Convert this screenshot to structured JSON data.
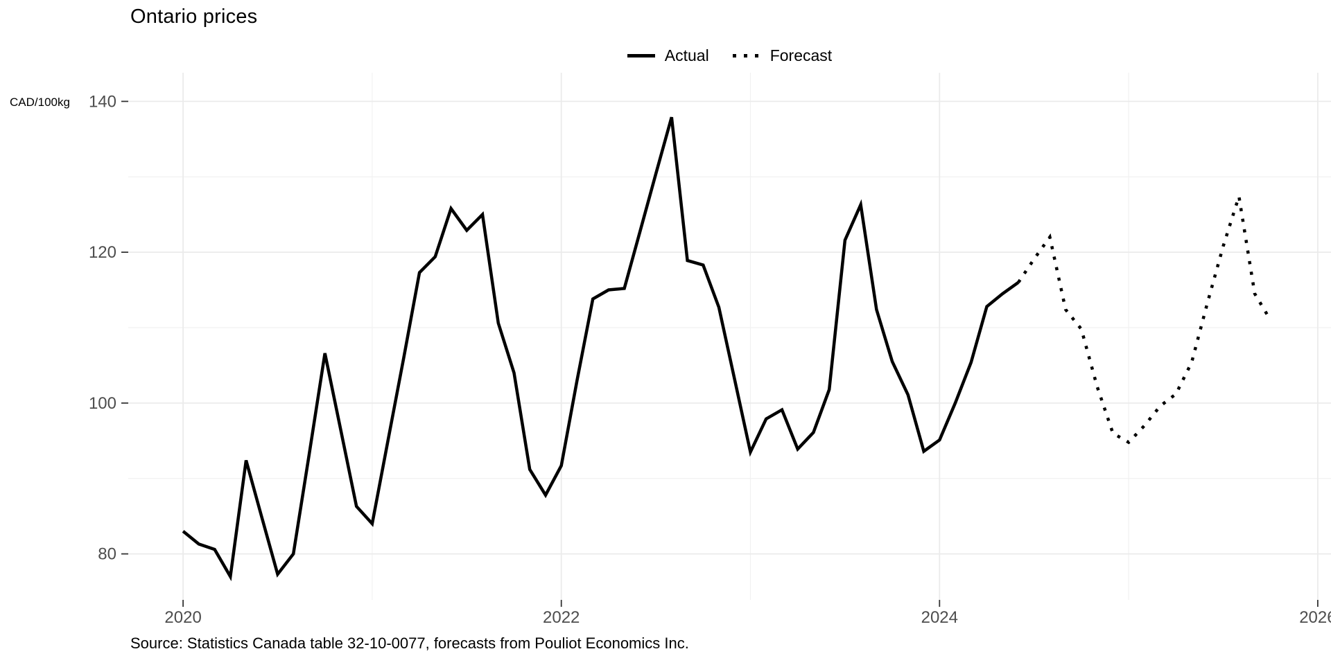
{
  "title": "Ontario prices",
  "y_unit_label": "CAD/100kg",
  "caption": "Source: Statistics Canada table 32-10-0077, forecasts from Pouliot Economics Inc.",
  "legend": {
    "actual_label": "Actual",
    "forecast_label": "Forecast"
  },
  "colors": {
    "line": "#000000",
    "grid_major": "#ebebeb",
    "grid_minor": "#f1f1f1",
    "axis_text": "#4d4d4d",
    "tick_mark": "#333333",
    "background": "#ffffff"
  },
  "chart_data": {
    "type": "line",
    "title": "Ontario prices",
    "ylabel": "CAD/100kg",
    "xlabel": "",
    "grid": true,
    "legend_position": "top-center",
    "x_ticks": [
      2020,
      2022,
      2024,
      2026
    ],
    "x_minor_ticks": [
      2021,
      2023,
      2025
    ],
    "y_ticks": [
      80,
      100,
      120,
      140
    ],
    "y_minor_ticks": [
      90,
      110,
      130
    ],
    "x_range": [
      2019.71,
      2026.07
    ],
    "y_range": [
      73.9,
      143.8
    ],
    "series": [
      {
        "name": "Actual",
        "line_style": "solid",
        "points": [
          [
            "2020-01",
            83.0
          ],
          [
            "2020-02",
            81.3
          ],
          [
            "2020-03",
            80.6
          ],
          [
            "2020-04",
            77.0
          ],
          [
            "2020-05",
            92.4
          ],
          [
            "2020-06",
            84.8
          ],
          [
            "2020-07",
            77.3
          ],
          [
            "2020-08",
            80.0
          ],
          [
            "2020-09",
            93.2
          ],
          [
            "2020-10",
            106.6
          ],
          [
            "2020-11",
            96.5
          ],
          [
            "2020-12",
            86.3
          ],
          [
            "2021-01",
            84.0
          ],
          [
            "2021-02",
            95.0
          ],
          [
            "2021-03",
            106.0
          ],
          [
            "2021-04",
            117.3
          ],
          [
            "2021-05",
            119.4
          ],
          [
            "2021-06",
            125.8
          ],
          [
            "2021-07",
            122.9
          ],
          [
            "2021-08",
            125.0
          ],
          [
            "2021-09",
            110.6
          ],
          [
            "2021-10",
            104.0
          ],
          [
            "2021-11",
            91.2
          ],
          [
            "2021-12",
            87.8
          ],
          [
            "2022-01",
            91.7
          ],
          [
            "2022-02",
            103.0
          ],
          [
            "2022-03",
            113.8
          ],
          [
            "2022-04",
            115.0
          ],
          [
            "2022-05",
            115.2
          ],
          [
            "2022-06",
            122.8
          ],
          [
            "2022-07",
            130.4
          ],
          [
            "2022-08",
            137.9
          ],
          [
            "2022-09",
            118.9
          ],
          [
            "2022-10",
            118.3
          ],
          [
            "2022-11",
            112.7
          ],
          [
            "2022-12",
            103.1
          ],
          [
            "2023-01",
            93.5
          ],
          [
            "2023-02",
            97.9
          ],
          [
            "2023-03",
            99.1
          ],
          [
            "2023-04",
            93.9
          ],
          [
            "2023-05",
            96.1
          ],
          [
            "2023-06",
            101.8
          ],
          [
            "2023-07",
            121.6
          ],
          [
            "2023-08",
            126.3
          ],
          [
            "2023-09",
            112.4
          ],
          [
            "2023-10",
            105.5
          ],
          [
            "2023-11",
            101.1
          ],
          [
            "2023-12",
            93.6
          ],
          [
            "2024-01",
            95.1
          ],
          [
            "2024-02",
            100.0
          ],
          [
            "2024-03",
            105.4
          ],
          [
            "2024-04",
            112.8
          ],
          [
            "2024-05",
            114.5
          ],
          [
            "2024-06",
            116.0
          ]
        ]
      },
      {
        "name": "Forecast",
        "line_style": "dotted",
        "points": [
          [
            "2024-06",
            116.0
          ],
          [
            "2024-07",
            119.1
          ],
          [
            "2024-08",
            122.0
          ],
          [
            "2024-09",
            112.4
          ],
          [
            "2024-10",
            109.8
          ],
          [
            "2024-11",
            102.2
          ],
          [
            "2024-12",
            96.0
          ],
          [
            "2025-01",
            94.8
          ],
          [
            "2025-02",
            97.0
          ],
          [
            "2025-03",
            99.6
          ],
          [
            "2025-04",
            101.2
          ],
          [
            "2025-05",
            105.4
          ],
          [
            "2025-06",
            113.3
          ],
          [
            "2025-07",
            120.8
          ],
          [
            "2025-08",
            127.4
          ],
          [
            "2025-09",
            114.5
          ],
          [
            "2025-10",
            111.0
          ]
        ]
      }
    ]
  }
}
